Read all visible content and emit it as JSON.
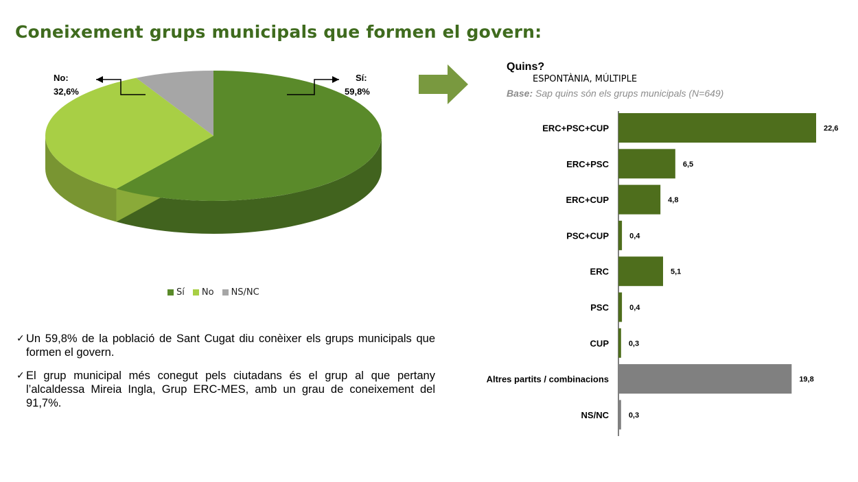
{
  "page": {
    "title": "Coneixement grups municipals que formen el govern:"
  },
  "colors": {
    "title": "#3f6b1e",
    "si": "#5a8a2a",
    "no": "#a8cf45",
    "nsnc": "#a6a6a6",
    "bar_green": "#4e6e1c",
    "bar_gray": "#808080",
    "arrow": "#79993f"
  },
  "chart_data": [
    {
      "type": "pie",
      "slices": [
        {
          "name": "Sí",
          "label": "Sí:",
          "value": 59.8,
          "value_label": "59,8%"
        },
        {
          "name": "No",
          "label": "No:",
          "value": 32.6,
          "value_label": "32,6%"
        },
        {
          "name": "NS/NC",
          "value": 7.6
        }
      ],
      "legend": [
        "Sí",
        "No",
        "NS/NC"
      ],
      "legend_position": "bottom"
    },
    {
      "type": "bar",
      "orientation": "horizontal",
      "title": "Quins?",
      "subtitle": "ESPONTÀNIA, MÚLTIPLE",
      "base_prefix": "Base:",
      "base_text": " Sap quins són els grups municipals (N=649)",
      "categories": [
        "ERC+PSC+CUP",
        "ERC+PSC",
        "ERC+CUP",
        "PSC+CUP",
        "ERC",
        "PSC",
        "CUP",
        "Altres partits / combinacions",
        "NS/NC"
      ],
      "values": [
        22.6,
        6.5,
        4.8,
        0.4,
        5.1,
        0.4,
        0.3,
        19.8,
        0.3
      ],
      "value_labels": [
        "22,6",
        "6,5",
        "4,8",
        "0,4",
        "5,1",
        "0,4",
        "0,3",
        "19,8",
        "0,3"
      ],
      "colors": [
        "green",
        "green",
        "green",
        "green",
        "green",
        "green",
        "green",
        "gray",
        "gray"
      ],
      "xlim": [
        0,
        22.6
      ]
    }
  ],
  "bullets": [
    "Un 59,8% de la població de Sant Cugat diu conèixer els grups municipals que formen el govern.",
    "El grup municipal més conegut pels ciutadans és el grup al que pertany l’alcaldessa Mireia Ingla, Grup ERC-MES, amb un grau de coneixement del 91,7%."
  ]
}
